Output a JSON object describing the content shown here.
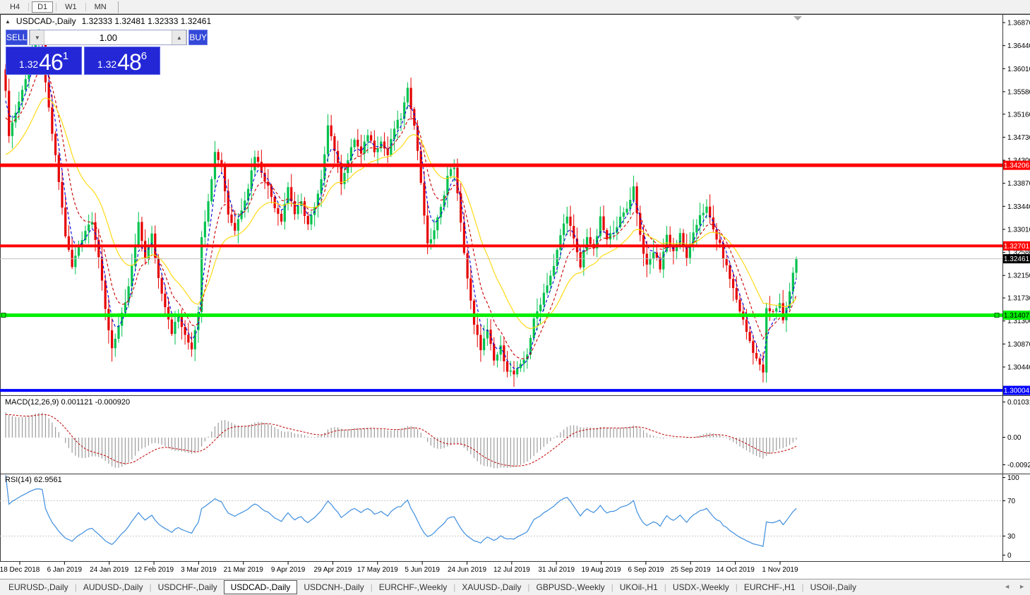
{
  "toolbar": {
    "timeframes": [
      {
        "label": "H4",
        "active": false
      },
      {
        "label": "D1",
        "active": true
      },
      {
        "label": "W1",
        "active": false
      },
      {
        "label": "MN",
        "active": false
      }
    ]
  },
  "chart": {
    "title": {
      "collapse_icon": "▲",
      "symbol": "USDCAD-,Daily",
      "ohlc": "1.32333 1.32481 1.32333 1.32461"
    },
    "trade_panel": {
      "sell_label": "SELL",
      "buy_label": "BUY",
      "volume": "1.00",
      "spinner_down_icon": "▼",
      "spinner_up_icon": "▲",
      "sell_price": {
        "prefix": "1.32",
        "big": "46",
        "sup": "1"
      },
      "buy_price": {
        "prefix": "1.32",
        "big": "48",
        "sup": "6"
      }
    },
    "price_axis_ticks": [
      "1.36870",
      "1.36440",
      "1.36010",
      "1.35580",
      "1.35160",
      "1.34730",
      "1.34300",
      "1.33870",
      "1.33440",
      "1.33010",
      "1.32580",
      "1.32150",
      "1.31730",
      "1.31300",
      "1.30870",
      "1.30440"
    ],
    "levels": [
      {
        "label": "1.34206",
        "price": 1.34206,
        "color": "#FF0000",
        "text_color": "#FFFFFF",
        "thickness": 5,
        "handles": false
      },
      {
        "label": "1.32701",
        "price": 1.32701,
        "color": "#FF0000",
        "text_color": "#FFFFFF",
        "thickness": 4,
        "handles": false
      },
      {
        "label": "1.31407",
        "price": 1.31407,
        "color": "#00EE00",
        "text_color": "#000000",
        "thickness": 5,
        "handles": true
      },
      {
        "label": "1.30004",
        "price": 1.30004,
        "color": "#0000FF",
        "text_color": "#FFFFFF",
        "thickness": 4,
        "handles": false
      }
    ],
    "current_price": {
      "label": "1.32461",
      "price": 1.32461,
      "line_color": "#C0C0C0",
      "bg": "#000000",
      "text_color": "#FFFFFF"
    }
  },
  "indicator_panels": {
    "macd": {
      "label": "MACD(12,26,9) 0.001121 -0.000920",
      "axis": [
        "0.010311",
        "0.00",
        "-0.00920"
      ]
    },
    "rsi": {
      "label": "RSI(14) 62.9561",
      "axis": [
        "100",
        "70",
        "30",
        "0"
      ]
    }
  },
  "chart_data": {
    "type": "candlestick",
    "symbol": "USDCAD-",
    "timeframe": "Daily",
    "title": "USDCAD-,Daily",
    "ohlc_current": {
      "open": 1.32333,
      "high": 1.32481,
      "low": 1.32333,
      "close": 1.32461
    },
    "ylim": [
      1.2992,
      1.3703
    ],
    "grid": false,
    "bull_color": "#00C24E",
    "bear_color": "#E60000",
    "candle_count": 239,
    "history_seed": {
      "bars": 30,
      "start": 1.318
    },
    "close_anchors": [
      [
        0,
        1.3555
      ],
      [
        1,
        1.348
      ],
      [
        3,
        1.352
      ],
      [
        5,
        1.356
      ],
      [
        7,
        1.361
      ],
      [
        9,
        1.365
      ],
      [
        11,
        1.366
      ],
      [
        12,
        1.357
      ],
      [
        14,
        1.348
      ],
      [
        16,
        1.339
      ],
      [
        18,
        1.329
      ],
      [
        20,
        1.323
      ],
      [
        22,
        1.327
      ],
      [
        24,
        1.33
      ],
      [
        26,
        1.332
      ],
      [
        28,
        1.325
      ],
      [
        30,
        1.315
      ],
      [
        32,
        1.308
      ],
      [
        34,
        1.312
      ],
      [
        36,
        1.316
      ],
      [
        38,
        1.323
      ],
      [
        40,
        1.331
      ],
      [
        42,
        1.325
      ],
      [
        44,
        1.329
      ],
      [
        46,
        1.321
      ],
      [
        48,
        1.316
      ],
      [
        50,
        1.311
      ],
      [
        52,
        1.314
      ],
      [
        54,
        1.31
      ],
      [
        56,
        1.308
      ],
      [
        58,
        1.315
      ],
      [
        59,
        1.329
      ],
      [
        61,
        1.335
      ],
      [
        63,
        1.345
      ],
      [
        65,
        1.342
      ],
      [
        67,
        1.333
      ],
      [
        69,
        1.33
      ],
      [
        71,
        1.334
      ],
      [
        73,
        1.338
      ],
      [
        75,
        1.344
      ],
      [
        77,
        1.341
      ],
      [
        79,
        1.338
      ],
      [
        81,
        1.3345
      ],
      [
        83,
        1.332
      ],
      [
        85,
        1.338
      ],
      [
        87,
        1.333
      ],
      [
        89,
        1.335
      ],
      [
        91,
        1.331
      ],
      [
        93,
        1.334
      ],
      [
        95,
        1.339
      ],
      [
        97,
        1.35
      ],
      [
        99,
        1.345
      ],
      [
        101,
        1.339
      ],
      [
        103,
        1.343
      ],
      [
        105,
        1.347
      ],
      [
        107,
        1.344
      ],
      [
        109,
        1.348
      ],
      [
        111,
        1.345
      ],
      [
        113,
        1.3465
      ],
      [
        115,
        1.344
      ],
      [
        117,
        1.349
      ],
      [
        119,
        1.351
      ],
      [
        121,
        1.356
      ],
      [
        123,
        1.35
      ],
      [
        125,
        1.339
      ],
      [
        127,
        1.327
      ],
      [
        129,
        1.33
      ],
      [
        131,
        1.334
      ],
      [
        133,
        1.34
      ],
      [
        135,
        1.342
      ],
      [
        137,
        1.331
      ],
      [
        139,
        1.321
      ],
      [
        141,
        1.312
      ],
      [
        143,
        1.308
      ],
      [
        145,
        1.311
      ],
      [
        147,
        1.3055
      ],
      [
        149,
        1.308
      ],
      [
        151,
        1.304
      ],
      [
        153,
        1.303
      ],
      [
        155,
        1.3045
      ],
      [
        157,
        1.307
      ],
      [
        159,
        1.313
      ],
      [
        161,
        1.3165
      ],
      [
        163,
        1.32
      ],
      [
        165,
        1.323
      ],
      [
        167,
        1.329
      ],
      [
        169,
        1.333
      ],
      [
        171,
        1.328
      ],
      [
        173,
        1.323
      ],
      [
        175,
        1.329
      ],
      [
        177,
        1.326
      ],
      [
        179,
        1.332
      ],
      [
        181,
        1.328
      ],
      [
        183,
        1.33
      ],
      [
        185,
        1.332
      ],
      [
        187,
        1.334
      ],
      [
        189,
        1.338
      ],
      [
        191,
        1.329
      ],
      [
        193,
        1.323
      ],
      [
        195,
        1.326
      ],
      [
        197,
        1.323
      ],
      [
        199,
        1.329
      ],
      [
        201,
        1.326
      ],
      [
        203,
        1.329
      ],
      [
        205,
        1.325
      ],
      [
        207,
        1.329
      ],
      [
        209,
        1.333
      ],
      [
        211,
        1.334
      ],
      [
        213,
        1.33
      ],
      [
        215,
        1.327
      ],
      [
        217,
        1.323
      ],
      [
        219,
        1.319
      ],
      [
        221,
        1.315
      ],
      [
        223,
        1.311
      ],
      [
        225,
        1.3075
      ],
      [
        227,
        1.3045
      ],
      [
        228,
        1.3035
      ],
      [
        229,
        1.315
      ],
      [
        231,
        1.3145
      ],
      [
        233,
        1.3165
      ],
      [
        234,
        1.313
      ],
      [
        236,
        1.3185
      ],
      [
        237,
        1.322
      ],
      [
        238,
        1.3246
      ]
    ],
    "moving_averages": [
      {
        "name": "fast-ma",
        "period": 4,
        "color": "#0000D8",
        "style": "dashed"
      },
      {
        "name": "mid-ma",
        "period": 9,
        "color": "#C80000",
        "style": "dashed"
      },
      {
        "name": "slow-ma",
        "period": 21,
        "color": "#FFD700",
        "style": "solid"
      }
    ],
    "indicators": [
      {
        "name": "MACD",
        "params": "12,26,9",
        "value_main": 0.001121,
        "value_signal": -0.00092,
        "axis_max": 0.010311,
        "axis_min": -0.0092,
        "histogram_color": "#9C9C9C",
        "signal_color": "#C00000"
      },
      {
        "name": "RSI",
        "params": "14",
        "value": 62.9561,
        "levels": [
          70,
          30
        ],
        "axis_range": [
          0,
          100
        ],
        "line_color": "#3E8EDE"
      }
    ],
    "x_axis_dates": [
      "18 Dec 2018",
      "6 Jan 2019",
      "24 Jan 2019",
      "12 Feb 2019",
      "3 Mar 2019",
      "21 Mar 2019",
      "9 Apr 2019",
      "29 Apr 2019",
      "17 May 2019",
      "5 Jun 2019",
      "24 Jun 2019",
      "12 Jul 2019",
      "31 Jul 2019",
      "19 Aug 2019",
      "6 Sep 2019",
      "25 Sep 2019",
      "14 Oct 2019",
      "1 Nov 2019"
    ]
  },
  "tabs": {
    "items": [
      {
        "label": "EURUSD-,Daily",
        "active": false
      },
      {
        "label": "AUDUSD-,Daily",
        "active": false
      },
      {
        "label": "USDCHF-,Daily",
        "active": false
      },
      {
        "label": "USDCAD-,Daily",
        "active": true
      },
      {
        "label": "USDCNH-,Daily",
        "active": false
      },
      {
        "label": "EURCHF-,Weekly",
        "active": false
      },
      {
        "label": "XAUUSD-,Daily",
        "active": false
      },
      {
        "label": "GBPUSD-,Weekly",
        "active": false
      },
      {
        "label": "UKOil-,H1",
        "active": false
      },
      {
        "label": "USDX-,Weekly",
        "active": false
      },
      {
        "label": "EURCHF-,H1",
        "active": false
      },
      {
        "label": "USOil-,Daily",
        "active": false
      }
    ],
    "scroll_left_icon": "◄",
    "scroll_right_icon": "►"
  }
}
